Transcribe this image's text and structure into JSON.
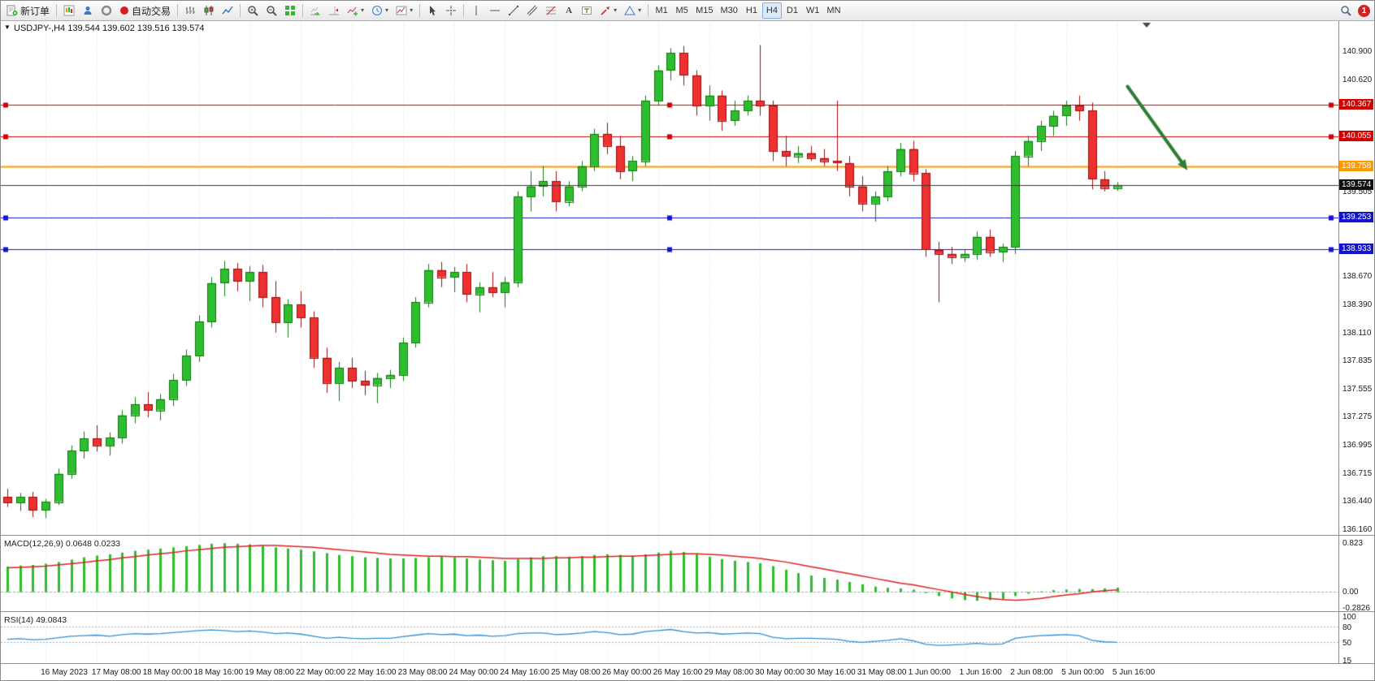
{
  "toolbar": {
    "new_order": "新订单",
    "auto_trading": "自动交易",
    "timeframes": [
      "M1",
      "M5",
      "M15",
      "M30",
      "H1",
      "H4",
      "D1",
      "W1",
      "MN"
    ],
    "active_timeframe": "H4",
    "notification_badge": "1"
  },
  "chart": {
    "symbol_header": "USDJPY-,H4 139.544 139.602 139.516 139.574"
  },
  "chart_data": {
    "type": "candlestick",
    "title": "USDJPY-,H4",
    "symbol": "USDJPY-",
    "period": "H4",
    "y_axis": {
      "min": 136.16,
      "max": 140.9,
      "plain_ticks": [
        "140.900",
        "140.620",
        "139.505",
        "138.670",
        "138.390",
        "138.110",
        "137.835",
        "137.555",
        "137.275",
        "136.995",
        "136.715",
        "136.440",
        "136.160"
      ]
    },
    "price_lines": [
      {
        "price": 140.367,
        "label": "140.367",
        "color": "#d40000",
        "width": 1,
        "handles": true
      },
      {
        "price": 140.055,
        "label": "140.055",
        "color": "#d40000",
        "width": 1,
        "handles": true
      },
      {
        "price": 139.758,
        "label": "139.758",
        "color": "#ff9a00",
        "width": 2,
        "handles": false
      },
      {
        "price": 139.574,
        "label": "139.574",
        "color": "#3a3a3a",
        "badge": "#101010",
        "width": 1,
        "current": true,
        "handles": false
      },
      {
        "price": 139.253,
        "label": "139.253",
        "color": "#1414cc",
        "width": 1,
        "handles": true
      },
      {
        "price": 138.933,
        "label": "138.933",
        "color": "#1414cc",
        "width": 1,
        "handles": true
      }
    ],
    "x_labels": [
      "16 May 2023",
      "17 May 08:00",
      "18 May 00:00",
      "18 May 16:00",
      "19 May 08:00",
      "22 May 00:00",
      "22 May 16:00",
      "23 May 08:00",
      "24 May 00:00",
      "24 May 16:00",
      "25 May 08:00",
      "26 May 00:00",
      "26 May 16:00",
      "29 May 08:00",
      "30 May 00:00",
      "30 May 16:00",
      "31 May 08:00",
      "1 Jun 00:00",
      "1 Jun 16:00",
      "2 Jun 08:00",
      "5 Jun 00:00",
      "5 Jun 16:00"
    ],
    "x_label_start_index": 3,
    "x_label_step": 4,
    "colors": {
      "up": "#2ebd2e",
      "up_border": "#117a11",
      "down": "#ee3030",
      "down_border": "#9c0f0f",
      "grid": "#dedede",
      "background": "#ffffff"
    },
    "candles": [
      [
        136.48,
        136.56,
        136.38,
        136.42
      ],
      [
        136.42,
        136.52,
        136.34,
        136.48
      ],
      [
        136.48,
        136.53,
        136.28,
        136.35
      ],
      [
        136.35,
        136.46,
        136.27,
        136.43
      ],
      [
        136.43,
        136.76,
        136.4,
        136.71
      ],
      [
        136.71,
        136.99,
        136.66,
        136.94
      ],
      [
        136.94,
        137.13,
        136.86,
        137.06
      ],
      [
        137.06,
        137.19,
        136.93,
        136.99
      ],
      [
        136.99,
        137.12,
        136.89,
        137.07
      ],
      [
        137.07,
        137.34,
        137.01,
        137.29
      ],
      [
        137.29,
        137.47,
        137.21,
        137.4
      ],
      [
        137.4,
        137.52,
        137.27,
        137.34
      ],
      [
        137.34,
        137.5,
        137.24,
        137.45
      ],
      [
        137.45,
        137.7,
        137.38,
        137.64
      ],
      [
        137.64,
        137.94,
        137.58,
        137.88
      ],
      [
        137.88,
        138.28,
        137.82,
        138.22
      ],
      [
        138.22,
        138.66,
        138.16,
        138.6
      ],
      [
        138.6,
        138.82,
        138.47,
        138.74
      ],
      [
        138.74,
        138.8,
        138.52,
        138.62
      ],
      [
        138.62,
        138.77,
        138.42,
        138.71
      ],
      [
        138.71,
        138.78,
        138.36,
        138.46
      ],
      [
        138.46,
        138.62,
        138.11,
        138.21
      ],
      [
        138.21,
        138.44,
        138.06,
        138.39
      ],
      [
        138.39,
        138.52,
        138.16,
        138.26
      ],
      [
        138.26,
        138.32,
        137.76,
        137.86
      ],
      [
        137.86,
        137.96,
        137.51,
        137.61
      ],
      [
        137.61,
        137.82,
        137.43,
        137.76
      ],
      [
        137.76,
        137.86,
        137.56,
        137.63
      ],
      [
        137.63,
        137.73,
        137.49,
        137.59
      ],
      [
        137.59,
        137.71,
        137.41,
        137.66
      ],
      [
        137.66,
        137.74,
        137.56,
        137.69
      ],
      [
        137.69,
        138.06,
        137.63,
        138.01
      ],
      [
        138.01,
        138.46,
        137.96,
        138.41
      ],
      [
        138.41,
        138.79,
        138.36,
        138.73
      ],
      [
        138.73,
        138.81,
        138.56,
        138.66
      ],
      [
        138.66,
        138.76,
        138.51,
        138.71
      ],
      [
        138.71,
        138.79,
        138.41,
        138.49
      ],
      [
        138.49,
        138.61,
        138.31,
        138.56
      ],
      [
        138.56,
        138.71,
        138.46,
        138.51
      ],
      [
        138.51,
        138.66,
        138.36,
        138.61
      ],
      [
        138.61,
        139.51,
        138.56,
        139.46
      ],
      [
        139.46,
        139.71,
        139.31,
        139.56
      ],
      [
        139.56,
        139.76,
        139.46,
        139.61
      ],
      [
        139.61,
        139.71,
        139.31,
        139.41
      ],
      [
        139.41,
        139.61,
        139.36,
        139.56
      ],
      [
        139.56,
        139.81,
        139.51,
        139.76
      ],
      [
        139.76,
        140.13,
        139.71,
        140.08
      ],
      [
        140.08,
        140.19,
        139.88,
        139.96
      ],
      [
        139.96,
        140.06,
        139.63,
        139.71
      ],
      [
        139.71,
        139.86,
        139.61,
        139.81
      ],
      [
        139.81,
        140.46,
        139.76,
        140.41
      ],
      [
        140.41,
        140.76,
        140.36,
        140.71
      ],
      [
        140.71,
        140.93,
        140.61,
        140.88
      ],
      [
        140.88,
        140.95,
        140.56,
        140.66
      ],
      [
        140.66,
        140.71,
        140.26,
        140.36
      ],
      [
        140.36,
        140.56,
        140.21,
        140.46
      ],
      [
        140.46,
        140.51,
        140.11,
        140.21
      ],
      [
        140.21,
        140.41,
        140.16,
        140.31
      ],
      [
        140.31,
        140.46,
        140.26,
        140.41
      ],
      [
        140.41,
        140.96,
        140.26,
        140.36
      ],
      [
        140.36,
        140.41,
        139.81,
        139.91
      ],
      [
        139.91,
        140.06,
        139.76,
        139.86
      ],
      [
        139.86,
        139.96,
        139.79,
        139.89
      ],
      [
        139.89,
        139.96,
        139.81,
        139.84
      ],
      [
        139.84,
        139.93,
        139.76,
        139.81
      ],
      [
        139.81,
        140.41,
        139.71,
        139.79
      ],
      [
        139.79,
        139.86,
        139.46,
        139.56
      ],
      [
        139.56,
        139.66,
        139.31,
        139.39
      ],
      [
        139.39,
        139.51,
        139.21,
        139.46
      ],
      [
        139.46,
        139.76,
        139.41,
        139.71
      ],
      [
        139.71,
        139.99,
        139.66,
        139.93
      ],
      [
        139.93,
        140.01,
        139.61,
        139.69
      ],
      [
        139.69,
        139.73,
        138.86,
        138.93
      ],
      [
        138.93,
        139.01,
        138.41,
        138.89
      ],
      [
        138.89,
        138.96,
        138.79,
        138.86
      ],
      [
        138.86,
        138.93,
        138.81,
        138.89
      ],
      [
        138.89,
        139.11,
        138.83,
        139.06
      ],
      [
        139.06,
        139.13,
        138.86,
        138.91
      ],
      [
        138.91,
        138.99,
        138.81,
        138.96
      ],
      [
        138.96,
        139.91,
        138.89,
        139.86
      ],
      [
        139.86,
        140.06,
        139.76,
        140.01
      ],
      [
        140.01,
        140.21,
        139.91,
        140.16
      ],
      [
        140.16,
        140.31,
        140.06,
        140.26
      ],
      [
        140.26,
        140.41,
        140.16,
        140.36
      ],
      [
        140.36,
        140.46,
        140.21,
        140.31
      ],
      [
        140.31,
        140.39,
        139.53,
        139.63
      ],
      [
        139.63,
        139.71,
        139.51,
        139.545
      ],
      [
        139.544,
        139.602,
        139.516,
        139.574
      ]
    ],
    "annotations": {
      "trend_arrow": {
        "from_bar": 87.8,
        "from_price": 140.55,
        "to_bar": 92.5,
        "to_price": 139.72,
        "color": "#2e7d32"
      },
      "shift_marker_bar": 89.3
    },
    "indicators": {
      "macd": {
        "label": "MACD(12,26,9) 0.0648 0.0233",
        "name": "MACD(12,26,9)",
        "main_value": "0.0648",
        "signal_value": "0.0233",
        "scale_ticks": [
          "0.823",
          "0.00",
          "-0.2826"
        ],
        "scale_max": 0.823,
        "scale_min": -0.2826,
        "histogram_color": "#2ebd2e",
        "signal_color": "#e02020",
        "histogram": [
          0.42,
          0.44,
          0.45,
          0.47,
          0.5,
          0.54,
          0.58,
          0.61,
          0.63,
          0.66,
          0.69,
          0.71,
          0.73,
          0.75,
          0.77,
          0.79,
          0.81,
          0.82,
          0.81,
          0.8,
          0.78,
          0.75,
          0.73,
          0.71,
          0.68,
          0.65,
          0.62,
          0.6,
          0.58,
          0.57,
          0.56,
          0.56,
          0.57,
          0.58,
          0.59,
          0.58,
          0.56,
          0.54,
          0.53,
          0.52,
          0.55,
          0.58,
          0.6,
          0.6,
          0.59,
          0.6,
          0.62,
          0.63,
          0.62,
          0.61,
          0.63,
          0.66,
          0.69,
          0.67,
          0.63,
          0.59,
          0.55,
          0.52,
          0.5,
          0.48,
          0.43,
          0.37,
          0.31,
          0.27,
          0.23,
          0.2,
          0.16,
          0.12,
          0.08,
          0.06,
          0.05,
          0.03,
          -0.03,
          -0.08,
          -0.12,
          -0.15,
          -0.16,
          -0.15,
          -0.13,
          -0.08,
          -0.04,
          0.0,
          0.02,
          0.03,
          0.04,
          0.04,
          0.05,
          0.0648
        ],
        "signal": [
          0.4,
          0.41,
          0.42,
          0.43,
          0.45,
          0.47,
          0.49,
          0.52,
          0.54,
          0.57,
          0.59,
          0.62,
          0.64,
          0.66,
          0.69,
          0.71,
          0.73,
          0.75,
          0.76,
          0.77,
          0.78,
          0.78,
          0.77,
          0.76,
          0.75,
          0.73,
          0.71,
          0.69,
          0.67,
          0.65,
          0.63,
          0.62,
          0.61,
          0.6,
          0.6,
          0.59,
          0.59,
          0.58,
          0.57,
          0.56,
          0.56,
          0.56,
          0.56,
          0.57,
          0.57,
          0.58,
          0.58,
          0.59,
          0.6,
          0.6,
          0.61,
          0.62,
          0.63,
          0.64,
          0.64,
          0.63,
          0.62,
          0.6,
          0.58,
          0.56,
          0.53,
          0.5,
          0.46,
          0.42,
          0.38,
          0.34,
          0.3,
          0.26,
          0.22,
          0.18,
          0.14,
          0.11,
          0.07,
          0.03,
          -0.01,
          -0.05,
          -0.09,
          -0.12,
          -0.14,
          -0.15,
          -0.14,
          -0.12,
          -0.09,
          -0.06,
          -0.04,
          -0.01,
          0.01,
          0.0233
        ]
      },
      "rsi": {
        "label": "RSI(14) 49.0843",
        "name": "RSI(14)",
        "value": "49.0843",
        "scale_ticks": [
          "100",
          "80",
          "50",
          "15"
        ],
        "scale_max": 100,
        "scale_min": 15,
        "levels": [
          80,
          50
        ],
        "line_color": "#2f8fd8",
        "values": [
          55,
          56,
          54,
          55,
          58,
          61,
          62,
          63,
          61,
          64,
          66,
          65,
          66,
          68,
          70,
          72,
          73,
          72,
          70,
          71,
          69,
          66,
          67,
          65,
          61,
          57,
          59,
          57,
          56,
          57,
          57,
          60,
          63,
          66,
          64,
          65,
          62,
          63,
          61,
          62,
          66,
          67,
          67,
          64,
          65,
          67,
          70,
          68,
          64,
          65,
          70,
          72,
          74,
          70,
          67,
          68,
          65,
          66,
          67,
          66,
          59,
          56,
          57,
          57,
          56,
          55,
          51,
          49,
          51,
          53,
          56,
          52,
          45,
          43,
          44,
          45,
          47,
          45,
          46,
          57,
          60,
          62,
          63,
          64,
          62,
          53,
          50,
          49.08
        ]
      }
    }
  }
}
